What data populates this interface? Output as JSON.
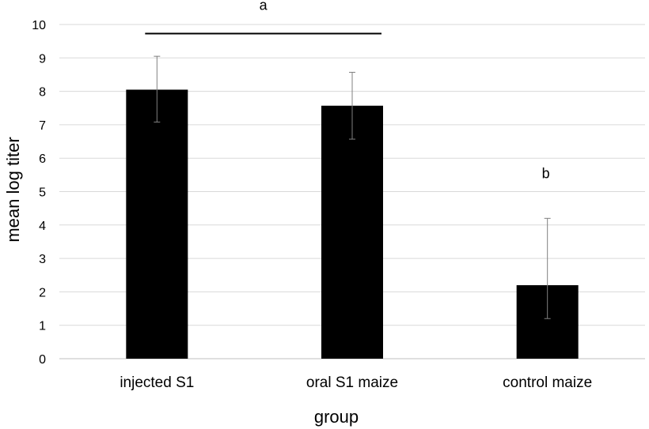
{
  "chart_data": {
    "type": "bar",
    "title": "",
    "xlabel": "group",
    "ylabel": "mean log titer",
    "ylim": [
      0,
      10
    ],
    "yticks": [
      0,
      1,
      2,
      3,
      4,
      5,
      6,
      7,
      8,
      9,
      10
    ],
    "grid": true,
    "categories": [
      "injected S1",
      "oral S1 maize",
      "control maize"
    ],
    "values": [
      8.05,
      7.57,
      2.2
    ],
    "error_low": [
      7.08,
      6.57,
      1.2
    ],
    "error_high": [
      9.05,
      8.57,
      4.2
    ],
    "bar_color": "#000000",
    "annotations": [
      {
        "text": "a",
        "spans": [
          "injected S1",
          "oral S1 maize"
        ],
        "y": 9.8
      },
      {
        "text": "b",
        "category": "control maize",
        "y": 5.4
      }
    ]
  }
}
